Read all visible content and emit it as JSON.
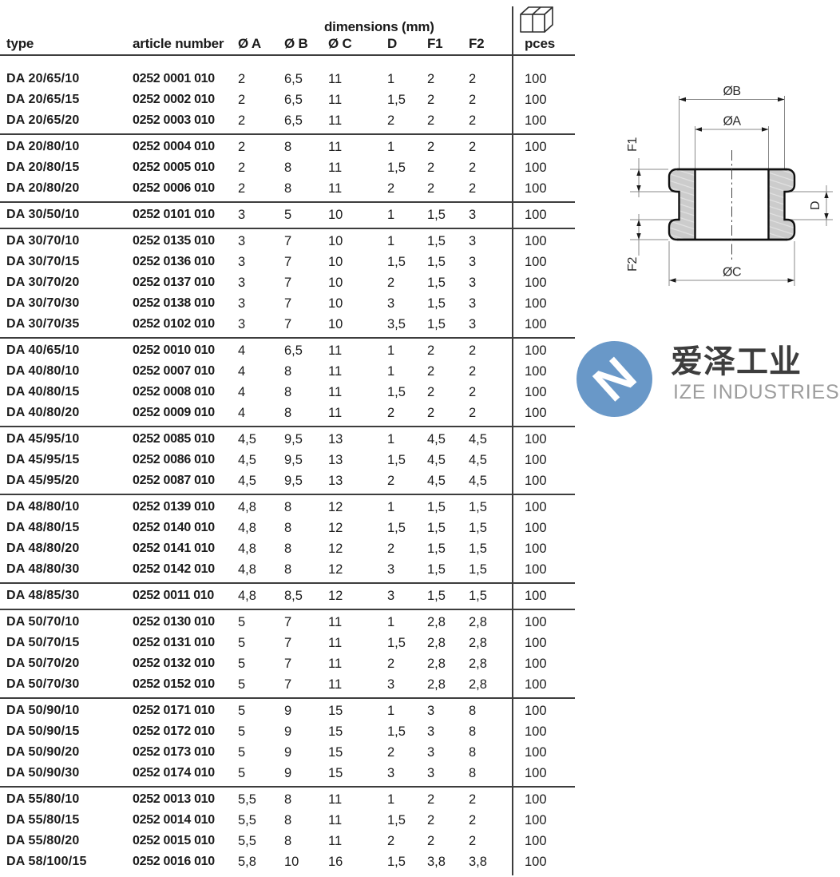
{
  "table": {
    "dimensions_header": "dimensions (mm)",
    "columns": [
      "type",
      "article number",
      "Ø A",
      "Ø B",
      "Ø C",
      "D",
      "F1",
      "F2",
      "pces"
    ],
    "groups": [
      [
        [
          "DA 20/65/10",
          "0252 0001 010",
          "2",
          "6,5",
          "11",
          "1",
          "2",
          "2",
          "100"
        ],
        [
          "DA 20/65/15",
          "0252 0002 010",
          "2",
          "6,5",
          "11",
          "1,5",
          "2",
          "2",
          "100"
        ],
        [
          "DA 20/65/20",
          "0252 0003 010",
          "2",
          "6,5",
          "11",
          "2",
          "2",
          "2",
          "100"
        ]
      ],
      [
        [
          "DA 20/80/10",
          "0252 0004 010",
          "2",
          "8",
          "11",
          "1",
          "2",
          "2",
          "100"
        ],
        [
          "DA 20/80/15",
          "0252 0005 010",
          "2",
          "8",
          "11",
          "1,5",
          "2",
          "2",
          "100"
        ],
        [
          "DA 20/80/20",
          "0252 0006 010",
          "2",
          "8",
          "11",
          "2",
          "2",
          "2",
          "100"
        ]
      ],
      [
        [
          "DA 30/50/10",
          "0252 0101 010",
          "3",
          "5",
          "10",
          "1",
          "1,5",
          "3",
          "100"
        ]
      ],
      [
        [
          "DA 30/70/10",
          "0252 0135 010",
          "3",
          "7",
          "10",
          "1",
          "1,5",
          "3",
          "100"
        ],
        [
          "DA 30/70/15",
          "0252 0136 010",
          "3",
          "7",
          "10",
          "1,5",
          "1,5",
          "3",
          "100"
        ],
        [
          "DA 30/70/20",
          "0252 0137 010",
          "3",
          "7",
          "10",
          "2",
          "1,5",
          "3",
          "100"
        ],
        [
          "DA 30/70/30",
          "0252 0138 010",
          "3",
          "7",
          "10",
          "3",
          "1,5",
          "3",
          "100"
        ],
        [
          "DA 30/70/35",
          "0252 0102 010",
          "3",
          "7",
          "10",
          "3,5",
          "1,5",
          "3",
          "100"
        ]
      ],
      [
        [
          "DA 40/65/10",
          "0252 0010 010",
          "4",
          "6,5",
          "11",
          "1",
          "2",
          "2",
          "100"
        ],
        [
          "DA 40/80/10",
          "0252 0007 010",
          "4",
          "8",
          "11",
          "1",
          "2",
          "2",
          "100"
        ],
        [
          "DA 40/80/15",
          "0252 0008 010",
          "4",
          "8",
          "11",
          "1,5",
          "2",
          "2",
          "100"
        ],
        [
          "DA 40/80/20",
          "0252 0009 010",
          "4",
          "8",
          "11",
          "2",
          "2",
          "2",
          "100"
        ]
      ],
      [
        [
          "DA 45/95/10",
          "0252 0085 010",
          "4,5",
          "9,5",
          "13",
          "1",
          "4,5",
          "4,5",
          "100"
        ],
        [
          "DA 45/95/15",
          "0252 0086 010",
          "4,5",
          "9,5",
          "13",
          "1,5",
          "4,5",
          "4,5",
          "100"
        ],
        [
          "DA 45/95/20",
          "0252 0087 010",
          "4,5",
          "9,5",
          "13",
          "2",
          "4,5",
          "4,5",
          "100"
        ]
      ],
      [
        [
          "DA 48/80/10",
          "0252 0139 010",
          "4,8",
          "8",
          "12",
          "1",
          "1,5",
          "1,5",
          "100"
        ],
        [
          "DA 48/80/15",
          "0252 0140 010",
          "4,8",
          "8",
          "12",
          "1,5",
          "1,5",
          "1,5",
          "100"
        ],
        [
          "DA 48/80/20",
          "0252 0141 010",
          "4,8",
          "8",
          "12",
          "2",
          "1,5",
          "1,5",
          "100"
        ],
        [
          "DA 48/80/30",
          "0252 0142 010",
          "4,8",
          "8",
          "12",
          "3",
          "1,5",
          "1,5",
          "100"
        ]
      ],
      [
        [
          "DA 48/85/30",
          "0252 0011 010",
          "4,8",
          "8,5",
          "12",
          "3",
          "1,5",
          "1,5",
          "100"
        ]
      ],
      [
        [
          "DA 50/70/10",
          "0252 0130 010",
          "5",
          "7",
          "11",
          "1",
          "2,8",
          "2,8",
          "100"
        ],
        [
          "DA 50/70/15",
          "0252 0131 010",
          "5",
          "7",
          "11",
          "1,5",
          "2,8",
          "2,8",
          "100"
        ],
        [
          "DA 50/70/20",
          "0252 0132 010",
          "5",
          "7",
          "11",
          "2",
          "2,8",
          "2,8",
          "100"
        ],
        [
          "DA 50/70/30",
          "0252 0152 010",
          "5",
          "7",
          "11",
          "3",
          "2,8",
          "2,8",
          "100"
        ]
      ],
      [
        [
          "DA 50/90/10",
          "0252 0171 010",
          "5",
          "9",
          "15",
          "1",
          "3",
          "8",
          "100"
        ],
        [
          "DA 50/90/15",
          "0252 0172 010",
          "5",
          "9",
          "15",
          "1,5",
          "3",
          "8",
          "100"
        ],
        [
          "DA 50/90/20",
          "0252 0173 010",
          "5",
          "9",
          "15",
          "2",
          "3",
          "8",
          "100"
        ],
        [
          "DA 50/90/30",
          "0252 0174 010",
          "5",
          "9",
          "15",
          "3",
          "3",
          "8",
          "100"
        ]
      ],
      [
        [
          "DA 55/80/10",
          "0252 0013 010",
          "5,5",
          "8",
          "11",
          "1",
          "2",
          "2",
          "100"
        ],
        [
          "DA 55/80/15",
          "0252 0014 010",
          "5,5",
          "8",
          "11",
          "1,5",
          "2",
          "2",
          "100"
        ],
        [
          "DA 55/80/20",
          "0252 0015 010",
          "5,5",
          "8",
          "11",
          "2",
          "2",
          "2",
          "100"
        ],
        [
          "DA 58/100/15",
          "0252 0016 010",
          "5,8",
          "10",
          "16",
          "1,5",
          "3,8",
          "3,8",
          "100"
        ]
      ]
    ]
  },
  "drawing": {
    "labels": {
      "ob": "ØB",
      "oa": "ØA",
      "oc": "ØC",
      "f1": "F1",
      "f2": "F2",
      "d": "D"
    }
  },
  "logo": {
    "cn": "爱泽工业",
    "en": "IZE INDUSTRIES",
    "blue": "#6998C8",
    "letter": "N"
  },
  "icons": {
    "pces_box": "isometric-packing-box",
    "line_color": "#3d3d3d"
  }
}
